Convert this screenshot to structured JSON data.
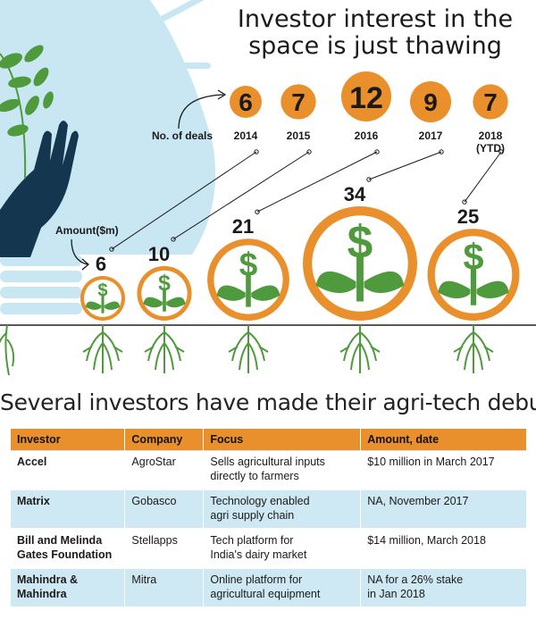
{
  "title": "Investor interest in the\nspace is just thawing",
  "labels": {
    "deals": "No. of deals",
    "amount": "Amount($m)"
  },
  "colors": {
    "orange": "#e98f2b",
    "green": "#4f9a3c",
    "navy": "#14364f",
    "light_blue": "#c9e7f3",
    "table_alt": "#cfe9f4"
  },
  "chart_data": {
    "type": "bubble",
    "categories": [
      "2014",
      "2015",
      "2016",
      "2017",
      "2018 (YTD)"
    ],
    "series": [
      {
        "name": "No. of deals",
        "values": [
          6,
          7,
          12,
          9,
          7
        ]
      },
      {
        "name": "Amount($m)",
        "values": [
          6,
          10,
          21,
          34,
          25
        ]
      }
    ]
  },
  "subtitle": "Several investors have made their agri-tech debut",
  "table": {
    "headers": [
      "Investor",
      "Company",
      "Focus",
      "Amount, date"
    ],
    "rows": [
      {
        "investor": "Accel",
        "company": "AgroStar",
        "focus": "Sells agricultural inputs\ndirectly to farmers",
        "amount": "$10 million in March 2017"
      },
      {
        "investor": "Matrix",
        "company": "Gobasco",
        "focus": "Technology enabled\nagri supply chain",
        "amount": "NA, November 2017"
      },
      {
        "investor": "Bill and Melinda\nGates Foundation",
        "company": "Stellapps",
        "focus": "Tech platform for\nIndia's dairy market",
        "amount": "$14 million, March 2018"
      },
      {
        "investor": "Mahindra &\nMahindra",
        "company": "Mitra",
        "focus": "Online platform for\nagricultural equipment",
        "amount": "NA for a 26% stake\nin Jan 2018"
      }
    ]
  }
}
